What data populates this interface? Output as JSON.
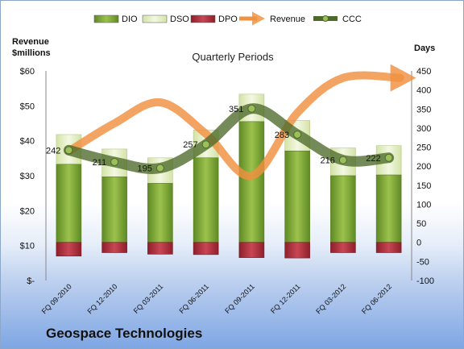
{
  "company_name": "Geospace Technologies",
  "chart_data": {
    "type": "bar",
    "title": "Quarterly Periods",
    "left_axis_title_line1": "Revenue",
    "left_axis_title_line2": "$millions",
    "right_axis_title": "Days",
    "categories": [
      "FQ 09-2010",
      "FQ 12-2010",
      "FQ 03-2011",
      "FQ 06-2011",
      "FQ 09-2011",
      "FQ 12-2011",
      "FQ 03-2012",
      "FQ 06-2012"
    ],
    "left_axis": {
      "min": 0,
      "max": 60,
      "step": 10,
      "ticks": [
        "$-",
        "$10",
        "$20",
        "$30",
        "$40",
        "$50",
        "$60"
      ]
    },
    "right_axis": {
      "min": -100,
      "max": 450,
      "step": 50
    },
    "legend_position": "top",
    "series": [
      {
        "name": "DIO",
        "type": "bar",
        "color": "#7ea23c",
        "values": [
          205,
          172,
          155,
          222,
          317,
          240,
          175,
          177
        ]
      },
      {
        "name": "DSO",
        "type": "bar",
        "color": "#e6f0c8",
        "values": [
          78,
          73,
          67,
          73,
          72,
          80,
          73,
          77
        ]
      },
      {
        "name": "DPO",
        "type": "bar",
        "color": "#b5313f",
        "values": [
          -36,
          -27,
          -31,
          -32,
          -40,
          -41,
          -27,
          -27
        ]
      },
      {
        "name": "Revenue",
        "type": "line",
        "color": "#f09040",
        "values": [
          37,
          45,
          51,
          42,
          30,
          48,
          58,
          58
        ]
      },
      {
        "name": "CCC",
        "type": "line",
        "color": "#4d6a2a",
        "values": [
          242,
          211,
          195,
          257,
          351,
          283,
          216,
          222
        ]
      }
    ],
    "data_labels": [
      "242",
      "211",
      "195",
      "257",
      "351",
      "283",
      "216",
      "222"
    ]
  }
}
